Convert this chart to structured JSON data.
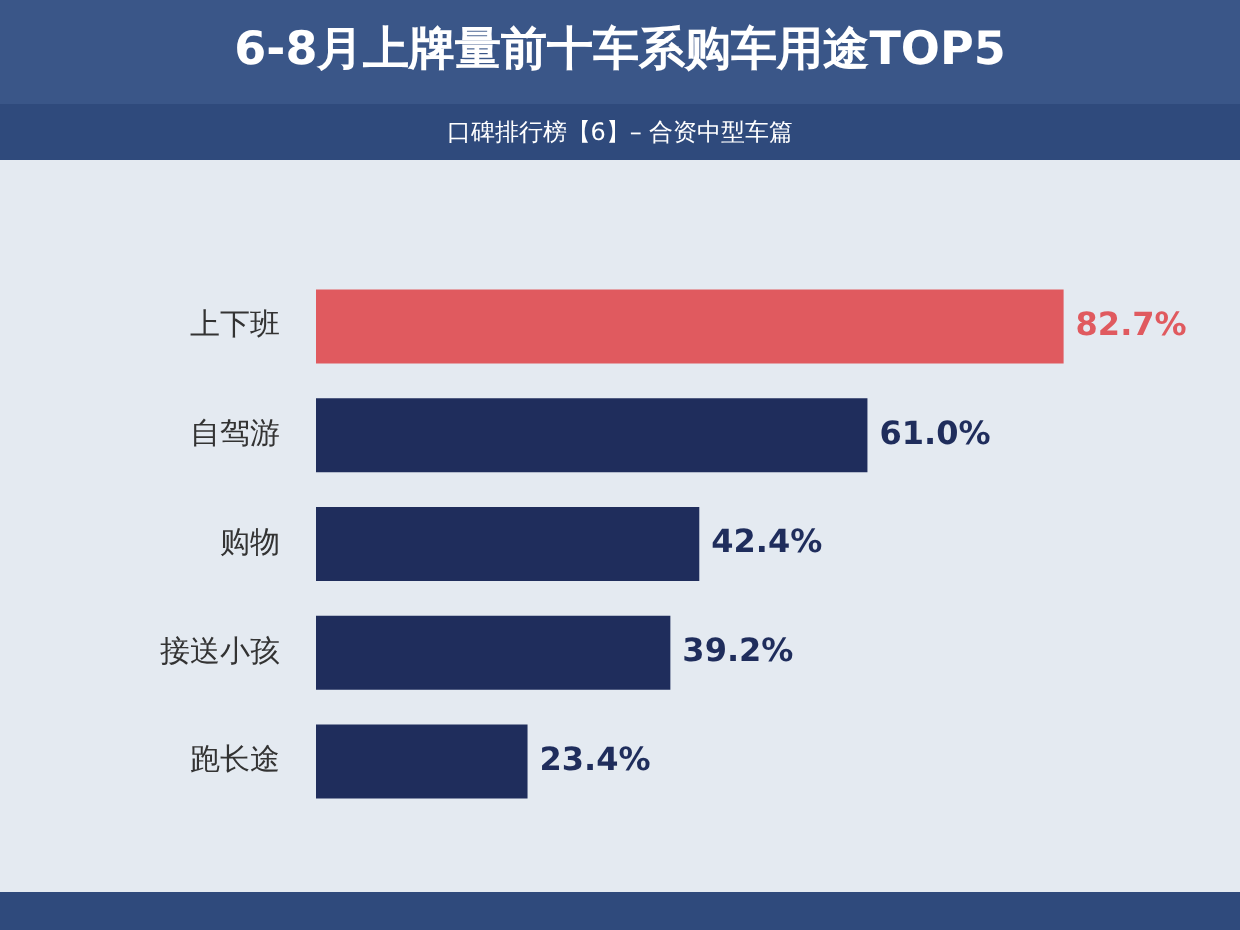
{
  "chart_data": {
    "type": "bar",
    "orientation": "horizontal",
    "title": "6-8月上牌量前十车系购车用途TOP5",
    "subtitle": "口碑排行榜【6】– 合资中型车篇",
    "categories": [
      "上下班",
      "自驾游",
      "购物",
      "接送小孩",
      "跑长途"
    ],
    "values": [
      82.7,
      61.0,
      42.4,
      39.2,
      23.4
    ],
    "value_labels": [
      "82.7%",
      "61.0%",
      "42.4%",
      "39.2%",
      "23.4%"
    ],
    "colors": [
      "#e05a5f",
      "#1f2d5c",
      "#1f2d5c",
      "#1f2d5c",
      "#1f2d5c"
    ],
    "legend": false
  }
}
